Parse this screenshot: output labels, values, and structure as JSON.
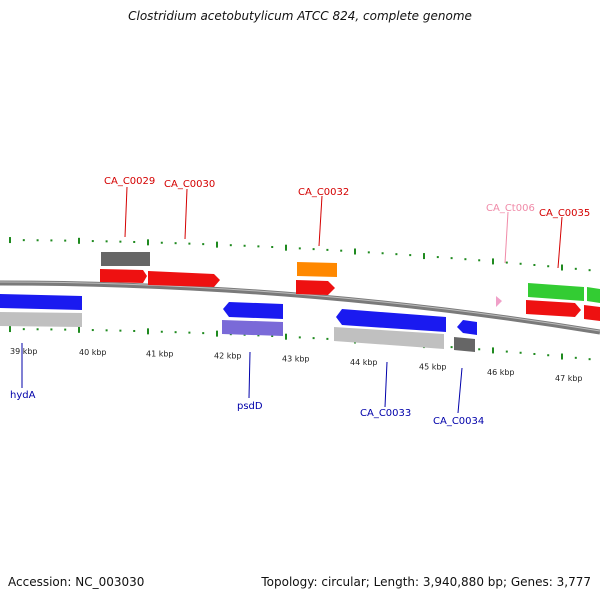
{
  "title": "Clostridium acetobutylicum ATCC 824, complete genome",
  "footer": {
    "accession": "Accession: NC_003030",
    "summary": "Topology: circular; Length: 3,940,880 bp; Genes: 3,777"
  },
  "colors": {
    "backbone": "#7a7a7a",
    "tick": "#1f8a1f",
    "label_red": "#d40000",
    "label_blue": "#0000aa",
    "label_pink": "#f08aa8",
    "feat_blue": "#1a1af0",
    "feat_gray": "#c0c0c0",
    "feat_darkgray": "#666666",
    "feat_red": "#ee1111",
    "feat_orange": "#ff8800",
    "feat_purple": "#7a6ad8",
    "feat_green": "#33cc33",
    "feat_pink": "#f0a0c8"
  },
  "scale": {
    "labels": [
      "39 kbp",
      "40 kbp",
      "41 kbp",
      "42 kbp",
      "43 kbp",
      "44 kbp",
      "45 kbp",
      "46 kbp",
      "47 kbp"
    ]
  },
  "genes": [
    {
      "name": "CA_C0029",
      "color": "label_red",
      "track": "top"
    },
    {
      "name": "CA_C0030",
      "color": "label_red",
      "track": "top"
    },
    {
      "name": "CA_C0032",
      "color": "label_red",
      "track": "top"
    },
    {
      "name": "CA_Ct006",
      "color": "label_pink",
      "track": "top"
    },
    {
      "name": "CA_C0035",
      "color": "label_red",
      "track": "top"
    },
    {
      "name": "hydA",
      "color": "label_blue",
      "track": "bottom"
    },
    {
      "name": "psdD",
      "color": "label_blue",
      "track": "bottom"
    },
    {
      "name": "CA_C0033",
      "color": "label_blue",
      "track": "bottom"
    },
    {
      "name": "CA_C0034",
      "color": "label_blue",
      "track": "bottom"
    }
  ]
}
